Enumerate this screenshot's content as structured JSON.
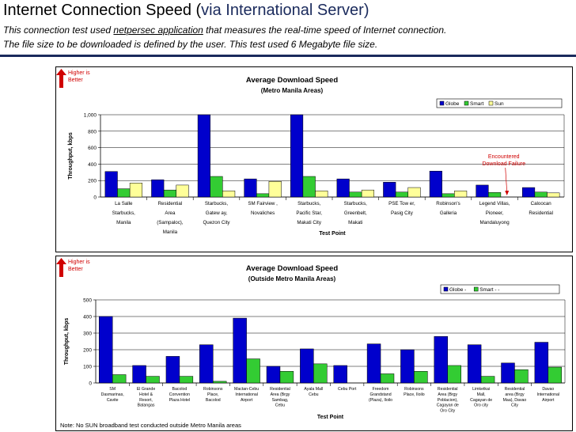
{
  "page": {
    "title_main": "Internet Connection Speed (",
    "title_via": "via International Server",
    "title_end": ")",
    "sub1_a": "This connection test used ",
    "sub1_link": "netpersec application",
    "sub1_b": " that measures the real-time speed of Internet connection.",
    "sub2": "The file size to be downloaded is defined by the user. This test used 6 Megabyte file size.",
    "higher_line1": "Higher is",
    "higher_line2": "Better",
    "note": "Note: No SUN broadband test conducted outside Metro Manila areas"
  },
  "colors": {
    "globe": "#0000cc",
    "smart": "#33cc33",
    "sun": "#ffff99",
    "accent": "#1a2a5c",
    "arrow": "#d00000"
  },
  "chart_data": [
    {
      "type": "bar",
      "title": "Average Download Speed",
      "subtitle": "(Metro Manila Areas)",
      "xlabel": "Test Point",
      "ylabel": "Throughput, kbps",
      "ylim": [
        0,
        1000
      ],
      "yticks": [
        "0",
        "200",
        "400",
        "600",
        "800",
        "1,000"
      ],
      "grid": true,
      "legend_position": "top-right",
      "categories": [
        [
          "La Salle",
          "Starbucks,",
          "Manila"
        ],
        [
          "Residential",
          "Area",
          "(Sampaloc),",
          "Manila"
        ],
        [
          "Starbucks,",
          "Gatew ay,",
          "Quezon City"
        ],
        [
          "SM Fairview ,",
          "Novaliches"
        ],
        [
          "Starbucks,",
          "Pacific Star,",
          "Makati City"
        ],
        [
          "Starbucks,",
          "Greenbelt,",
          "Makati"
        ],
        [
          "PSE Tow er,",
          "Pasig City"
        ],
        [
          "Robinson's",
          "Galleria"
        ],
        [
          "Legend Villas,",
          "Pioneer,",
          "Mandaluyong"
        ],
        [
          "Caloocan",
          "Residential"
        ]
      ],
      "series": [
        {
          "name": "Globe",
          "values": [
            310,
            210,
            1000,
            220,
            1000,
            220,
            180,
            315,
            145,
            115
          ]
        },
        {
          "name": "Smart",
          "values": [
            100,
            85,
            250,
            40,
            250,
            60,
            60,
            40,
            55,
            60
          ]
        },
        {
          "name": "Sun",
          "values": [
            170,
            145,
            75,
            190,
            75,
            85,
            115,
            75,
            0,
            50
          ]
        }
      ],
      "annotation": [
        "Encountered",
        "Download Failure"
      ]
    },
    {
      "type": "bar",
      "title": "Average Download Speed",
      "subtitle": "(Outside Metro Manila Areas)",
      "xlabel": "Test Point",
      "ylabel": "Throughput, kbps",
      "ylim": [
        0,
        500
      ],
      "yticks": [
        "0",
        "100",
        "200",
        "300",
        "400",
        "500"
      ],
      "grid": true,
      "legend_position": "top-right",
      "categories": [
        [
          "SM",
          "Dasmarinas,",
          "Cavite"
        ],
        [
          "El Grande",
          "Hotel &",
          "Resort,",
          "Batangas"
        ],
        [
          "Bacolod",
          "Convention",
          "Plaza Hotel"
        ],
        [
          "Robinsons",
          "Place,",
          "Bacolod"
        ],
        [
          "Mactan-Cebu",
          "International",
          "Airport"
        ],
        [
          "Residential",
          "Area (Brgy",
          "Sambag,",
          "Cebu"
        ],
        [
          "Ayala Mall",
          "Cebu"
        ],
        [
          "Cebu Port"
        ],
        [
          "Freedom",
          "Grandstand",
          "(Plaza), Iloilo"
        ],
        [
          "Robinsons",
          "Place, Iloilo"
        ],
        [
          "Residential",
          "Area (Brgy",
          "Poblacion),",
          "Cagayan de",
          "Oro City"
        ],
        [
          "Limketkai",
          "Mall,",
          "Cagayan de",
          "Oro city"
        ],
        [
          "Residential",
          "area (Brgy",
          "Maa), Davao",
          "City"
        ],
        [
          "Davao",
          "International",
          "Airport"
        ]
      ],
      "series": [
        {
          "name": "Globe -",
          "values": [
            400,
            105,
            160,
            230,
            390,
            100,
            205,
            105,
            235,
            200,
            280,
            230,
            120,
            245
          ]
        },
        {
          "name": "Smart - -",
          "values": [
            50,
            40,
            40,
            10,
            145,
            70,
            115,
            0,
            55,
            70,
            105,
            40,
            80,
            95
          ]
        }
      ]
    }
  ]
}
